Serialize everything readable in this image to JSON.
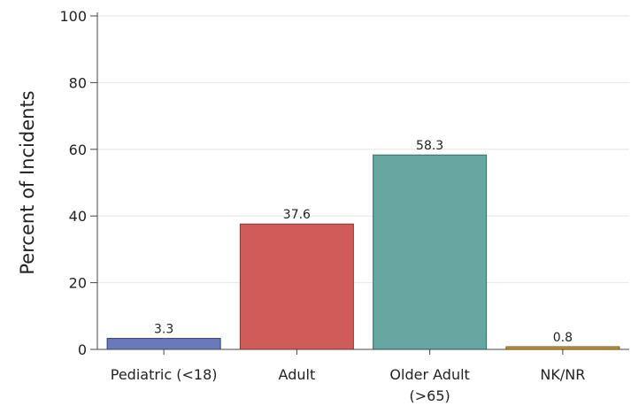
{
  "chart_data": {
    "type": "bar",
    "title": "",
    "xlabel": "",
    "ylabel": "Percent of Incidents",
    "ylim": [
      0,
      100
    ],
    "yticks": [
      0,
      20,
      40,
      60,
      80,
      100
    ],
    "grid": true,
    "categories": [
      [
        "Pediatric (<18)"
      ],
      [
        "Adult"
      ],
      [
        "Older Adult",
        "(>65)"
      ],
      [
        "NK/NR"
      ]
    ],
    "values": [
      3.3,
      37.6,
      58.3,
      0.8
    ],
    "data_labels": [
      "3.3",
      "37.6",
      "58.3",
      "0.8"
    ],
    "colors": [
      "#6a7ab8",
      "#d05c5a",
      "#66a8a1",
      "#c49a3a"
    ],
    "edge_colors": [
      "#2f3f80",
      "#9a2d2b",
      "#2e6f69",
      "#7a5a12"
    ]
  }
}
